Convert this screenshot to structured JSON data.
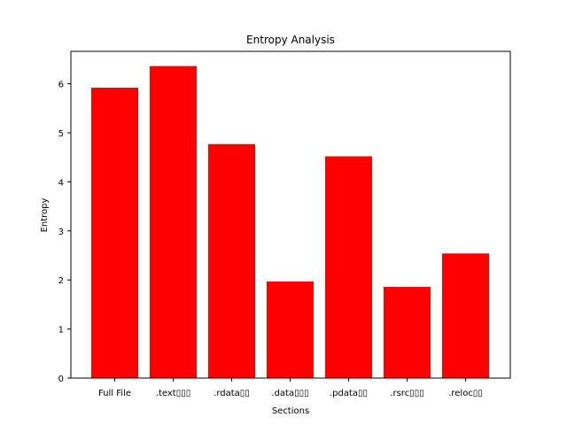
{
  "chart_data": {
    "type": "bar",
    "title": "Entropy Analysis",
    "xlabel": "Sections",
    "ylabel": "Entropy",
    "categories": [
      ".Full File",
      ".text",
      ".rdata",
      ".data",
      ".pdata",
      ".rsrc",
      ".reloc"
    ],
    "tick_labels": [
      "Full File",
      ".text\u0000\u0000\u0000",
      ".rdata\u0000\u0000",
      ".data\u0000\u0000\u0000",
      ".pdata\u0000\u0000",
      ".rsrc\u0000\u0000\u0000",
      ".reloc\u0000\u0000"
    ],
    "values": [
      5.92,
      6.36,
      4.77,
      1.97,
      4.52,
      1.86,
      2.54
    ],
    "ylim": [
      0,
      6.66
    ],
    "yticks": [
      0,
      1,
      2,
      3,
      4,
      5,
      6
    ],
    "bar_color": "#ff0000",
    "grid": false
  }
}
